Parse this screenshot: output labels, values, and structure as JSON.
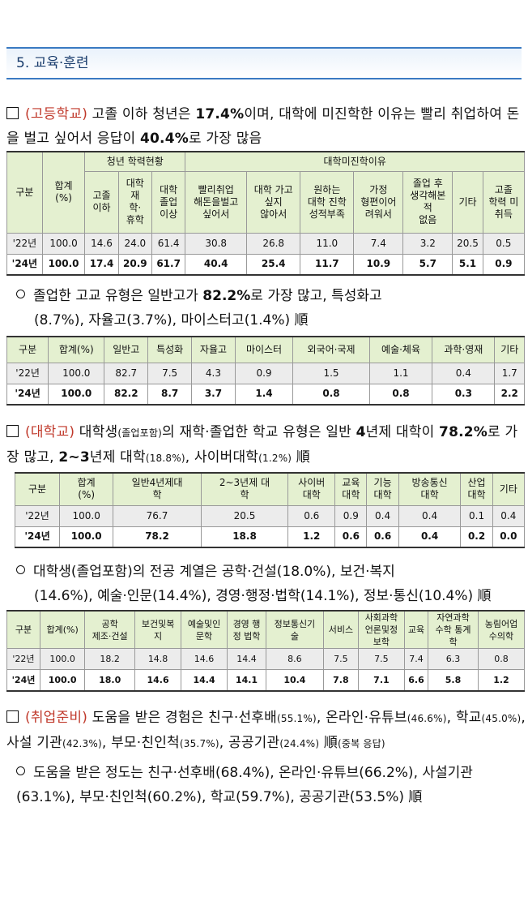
{
  "section": {
    "title": "5. 교육·훈련"
  },
  "p1": {
    "tag": "(고등학교)",
    "t1": " 고졸 이하 청년은 ",
    "v1": "17.4%",
    "t2": "이며, 대학에 미진학한 이유는 빨리 취업하여 돈을 벌고 싶어서 응답이 ",
    "v2": "40.4%",
    "t3": "로 가장 많음"
  },
  "table1": {
    "h_group": "구분",
    "h_total": "합계\n(%)",
    "h_status": "청년 학력현황",
    "h_reason": "대학미진학이유",
    "cols": [
      "고졸\n이하",
      "대학\n재\n학·\n휴학",
      "대학\n졸업\n이상",
      "빨리취업\n해돈을벌고\n싶어서",
      "대학 가고\n싶지\n않아서",
      "원하는\n대학 진학\n성적부족",
      "가정\n형편이어\n려워서",
      "졸업 후\n생각해본\n적\n없음",
      "기타",
      "고졸\n학력 미\n취득"
    ],
    "rows": [
      {
        "year": "'22년",
        "vals": [
          "100.0",
          "14.6",
          "24.0",
          "61.4",
          "30.8",
          "26.8",
          "11.0",
          "7.4",
          "3.2",
          "20.5",
          "0.5"
        ]
      },
      {
        "year": "'24년",
        "vals": [
          "100.0",
          "17.4",
          "20.9",
          "61.7",
          "40.4",
          "25.4",
          "11.7",
          "10.9",
          "5.7",
          "5.1",
          "0.9"
        ]
      }
    ]
  },
  "p2": {
    "t1": "졸업한 고교 유형은 일반고가 ",
    "v1": "82.2%",
    "t2": "로 가장 많고, 특성화고",
    "s1": "(8.7%)",
    "t3": ", 자율고",
    "s2": "(3.7%)",
    "t4": ", 마이스터고",
    "s3": "(1.4%)",
    "t5": " 順"
  },
  "table2": {
    "headers": [
      "구분",
      "합계(%)",
      "일반고",
      "특성화",
      "자율고",
      "마이스터",
      "외국어·국제",
      "예술·체육",
      "과학·영재",
      "기타"
    ],
    "rows": [
      {
        "year": "'22년",
        "vals": [
          "100.0",
          "82.7",
          "7.5",
          "4.3",
          "0.9",
          "1.5",
          "1.1",
          "0.4",
          "1.7"
        ]
      },
      {
        "year": "'24년",
        "vals": [
          "100.0",
          "82.2",
          "8.7",
          "3.7",
          "1.4",
          "0.8",
          "0.8",
          "0.3",
          "2.2"
        ]
      }
    ]
  },
  "p3": {
    "tag": "(대학교)",
    "t1": " 대학생",
    "s1": "(졸업포함)",
    "t2": "의 재학·졸업한 학교 유형은 일반 ",
    "v1": "4",
    "t3": "년제 대학이 ",
    "v2": "78.2%",
    "t4": "로 가장 많고, ",
    "v3": "2~3",
    "t5": "년제 대학",
    "s2": "(18.8%)",
    "t6": ", 사이버대학",
    "s3": "(1.2%)",
    "t7": " 順"
  },
  "table3": {
    "headers": [
      "구분",
      "합계\n(%)",
      "일반4년제대\n학",
      "2~3년제 대\n학",
      "사이버\n대학",
      "교육\n대학",
      "기능\n대학",
      "방송통신\n대학",
      "산업\n대학",
      "기타"
    ],
    "rows": [
      {
        "year": "'22년",
        "vals": [
          "100.0",
          "76.7",
          "20.5",
          "0.6",
          "0.9",
          "0.4",
          "0.4",
          "0.1",
          "0.4"
        ]
      },
      {
        "year": "'24년",
        "vals": [
          "100.0",
          "78.2",
          "18.8",
          "1.2",
          "0.6",
          "0.6",
          "0.4",
          "0.2",
          "0.0"
        ]
      }
    ]
  },
  "p4": {
    "t1": "대학생",
    "s1": "(졸업포함)",
    "t2": "의 전공 계열은 공학·건설",
    "s2": "(18.0%)",
    "t3": ", 보건·복지",
    "s3": "(14.6%)",
    "t4": ", 예술·인문",
    "s4": "(14.4%)",
    "t5": ", 경영·행정·법학",
    "s5": "(14.1%)",
    "t6": ", 정보·통신",
    "s6": "(10.4%)",
    "t7": " 順"
  },
  "table4": {
    "headers": [
      "구분",
      "합계(%)",
      "공학\n제조·건설",
      "보건및복\n지",
      "예술및인\n문학",
      "경영 행\n정 법학",
      "정보통신기\n술",
      "서비스",
      "사회과학\n언론및정\n보학",
      "교육",
      "자연과학\n수학 통계\n학",
      "농림어업\n수의학"
    ],
    "rows": [
      {
        "year": "'22년",
        "vals": [
          "100.0",
          "18.2",
          "14.8",
          "14.6",
          "14.4",
          "8.6",
          "7.5",
          "7.5",
          "7.4",
          "6.3",
          "0.8"
        ]
      },
      {
        "year": "'24년",
        "vals": [
          "100.0",
          "18.0",
          "14.6",
          "14.4",
          "14.1",
          "10.4",
          "7.8",
          "7.1",
          "6.6",
          "5.8",
          "1.2"
        ]
      }
    ]
  },
  "p5": {
    "tag": "(취업준비)",
    "t1": " 도움을 받은 경험은 친구·선후배",
    "s1": "(55.1%)",
    "t2": ", 온라인·유튜브",
    "s2": "(46.6%)",
    "t3": ", 학교",
    "s3": "(45.0%)",
    "t4": ", 사설 기관",
    "s4": "(42.3%)",
    "t5": ", 부모·친인척",
    "s5": "(35.7%)",
    "t6": ", 공공기관",
    "s6": "(24.4%)",
    "t7": " 順",
    "s7": "(중복 응답)"
  },
  "p6": {
    "t1": "도움을 받은 정도는 친구·선후배",
    "s1": "(68.4%)",
    "t2": ", 온라인·유튜브",
    "s2": "(66.2%)",
    "t3": ", 사설기관",
    "s3": "(63.1%)",
    "t4": ", 부모·친인척",
    "s4": "(60.2%)",
    "t5": ", 학교",
    "s5": "(59.7%)",
    "t6": ", 공공기관",
    "s6": "(53.5%)",
    "t7": " 順"
  }
}
